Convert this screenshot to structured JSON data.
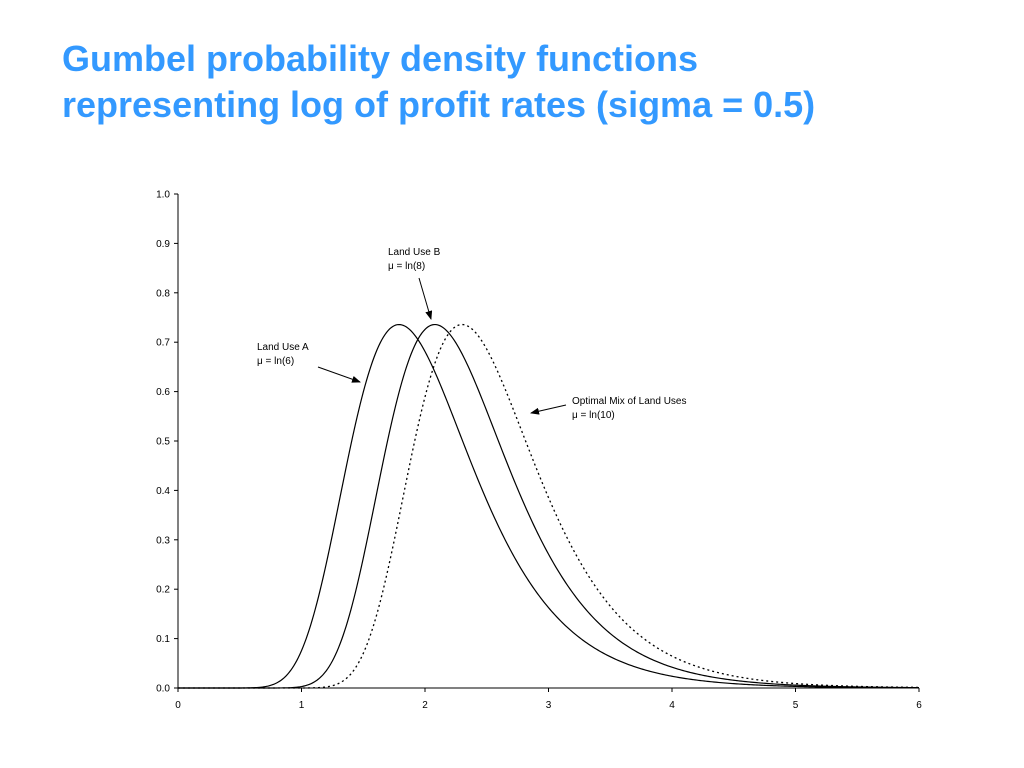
{
  "slide": {
    "title_line1": "Gumbel probability density functions",
    "title_line2": "representing log of profit rates (sigma = 0.5)",
    "title_color": "#3399ff"
  },
  "chart_data": {
    "type": "line",
    "title": "",
    "xlabel": "",
    "ylabel": "",
    "xlim": [
      0,
      6
    ],
    "ylim": [
      0,
      1.0
    ],
    "x_ticks": [
      "0",
      "1",
      "2",
      "3",
      "4",
      "5",
      "6"
    ],
    "y_ticks": [
      "0.0",
      "0.1",
      "0.2",
      "0.3",
      "0.4",
      "0.5",
      "0.6",
      "0.7",
      "0.8",
      "0.9",
      "1.0"
    ],
    "grid": false,
    "legend": "none",
    "distribution": "Gumbel",
    "sigma": 0.5,
    "series": [
      {
        "line_style": "solid",
        "mode": 1.79,
        "x": [
          0.0,
          0.5,
          1.0,
          1.2,
          1.4,
          1.6,
          1.79,
          2.0,
          2.2,
          2.4,
          2.6,
          2.8,
          3.0,
          3.5,
          4.0,
          4.5,
          5.0,
          5.5,
          6.0
        ],
        "y": [
          0.0,
          0.001,
          0.069,
          0.196,
          0.429,
          0.665,
          0.736,
          0.672,
          0.553,
          0.426,
          0.315,
          0.226,
          0.158,
          0.062,
          0.023,
          0.008,
          0.003,
          0.001,
          0.0
        ]
      },
      {
        "line_style": "solid",
        "mode": 2.08,
        "x": [
          0.0,
          1.0,
          1.3,
          1.5,
          1.7,
          1.9,
          2.08,
          2.3,
          2.5,
          2.7,
          2.9,
          3.1,
          3.3,
          3.6,
          4.0,
          4.5,
          5.0,
          5.5,
          6.0
        ],
        "y": [
          0.0,
          0.002,
          0.066,
          0.223,
          0.475,
          0.69,
          0.736,
          0.665,
          0.546,
          0.421,
          0.311,
          0.223,
          0.156,
          0.089,
          0.041,
          0.015,
          0.005,
          0.002,
          0.0
        ]
      },
      {
        "line_style": "dotted",
        "mode": 2.3,
        "x": [
          0.0,
          1.2,
          1.5,
          1.7,
          1.9,
          2.1,
          2.3,
          2.5,
          2.7,
          2.9,
          3.1,
          3.3,
          3.5,
          3.8,
          4.2,
          4.7,
          5.2,
          5.7,
          6.0
        ],
        "y": [
          0.0,
          0.002,
          0.066,
          0.223,
          0.475,
          0.69,
          0.736,
          0.672,
          0.546,
          0.421,
          0.311,
          0.223,
          0.156,
          0.089,
          0.041,
          0.015,
          0.005,
          0.002,
          0.001
        ]
      }
    ],
    "annotations": [
      {
        "line1": "Land Use A",
        "line2": "μ = ln(6)"
      },
      {
        "line1": "Land Use B",
        "line2": "μ = ln(8)"
      },
      {
        "line1": "Optimal Mix of Land Uses",
        "line2": "μ = ln(10)"
      }
    ]
  }
}
